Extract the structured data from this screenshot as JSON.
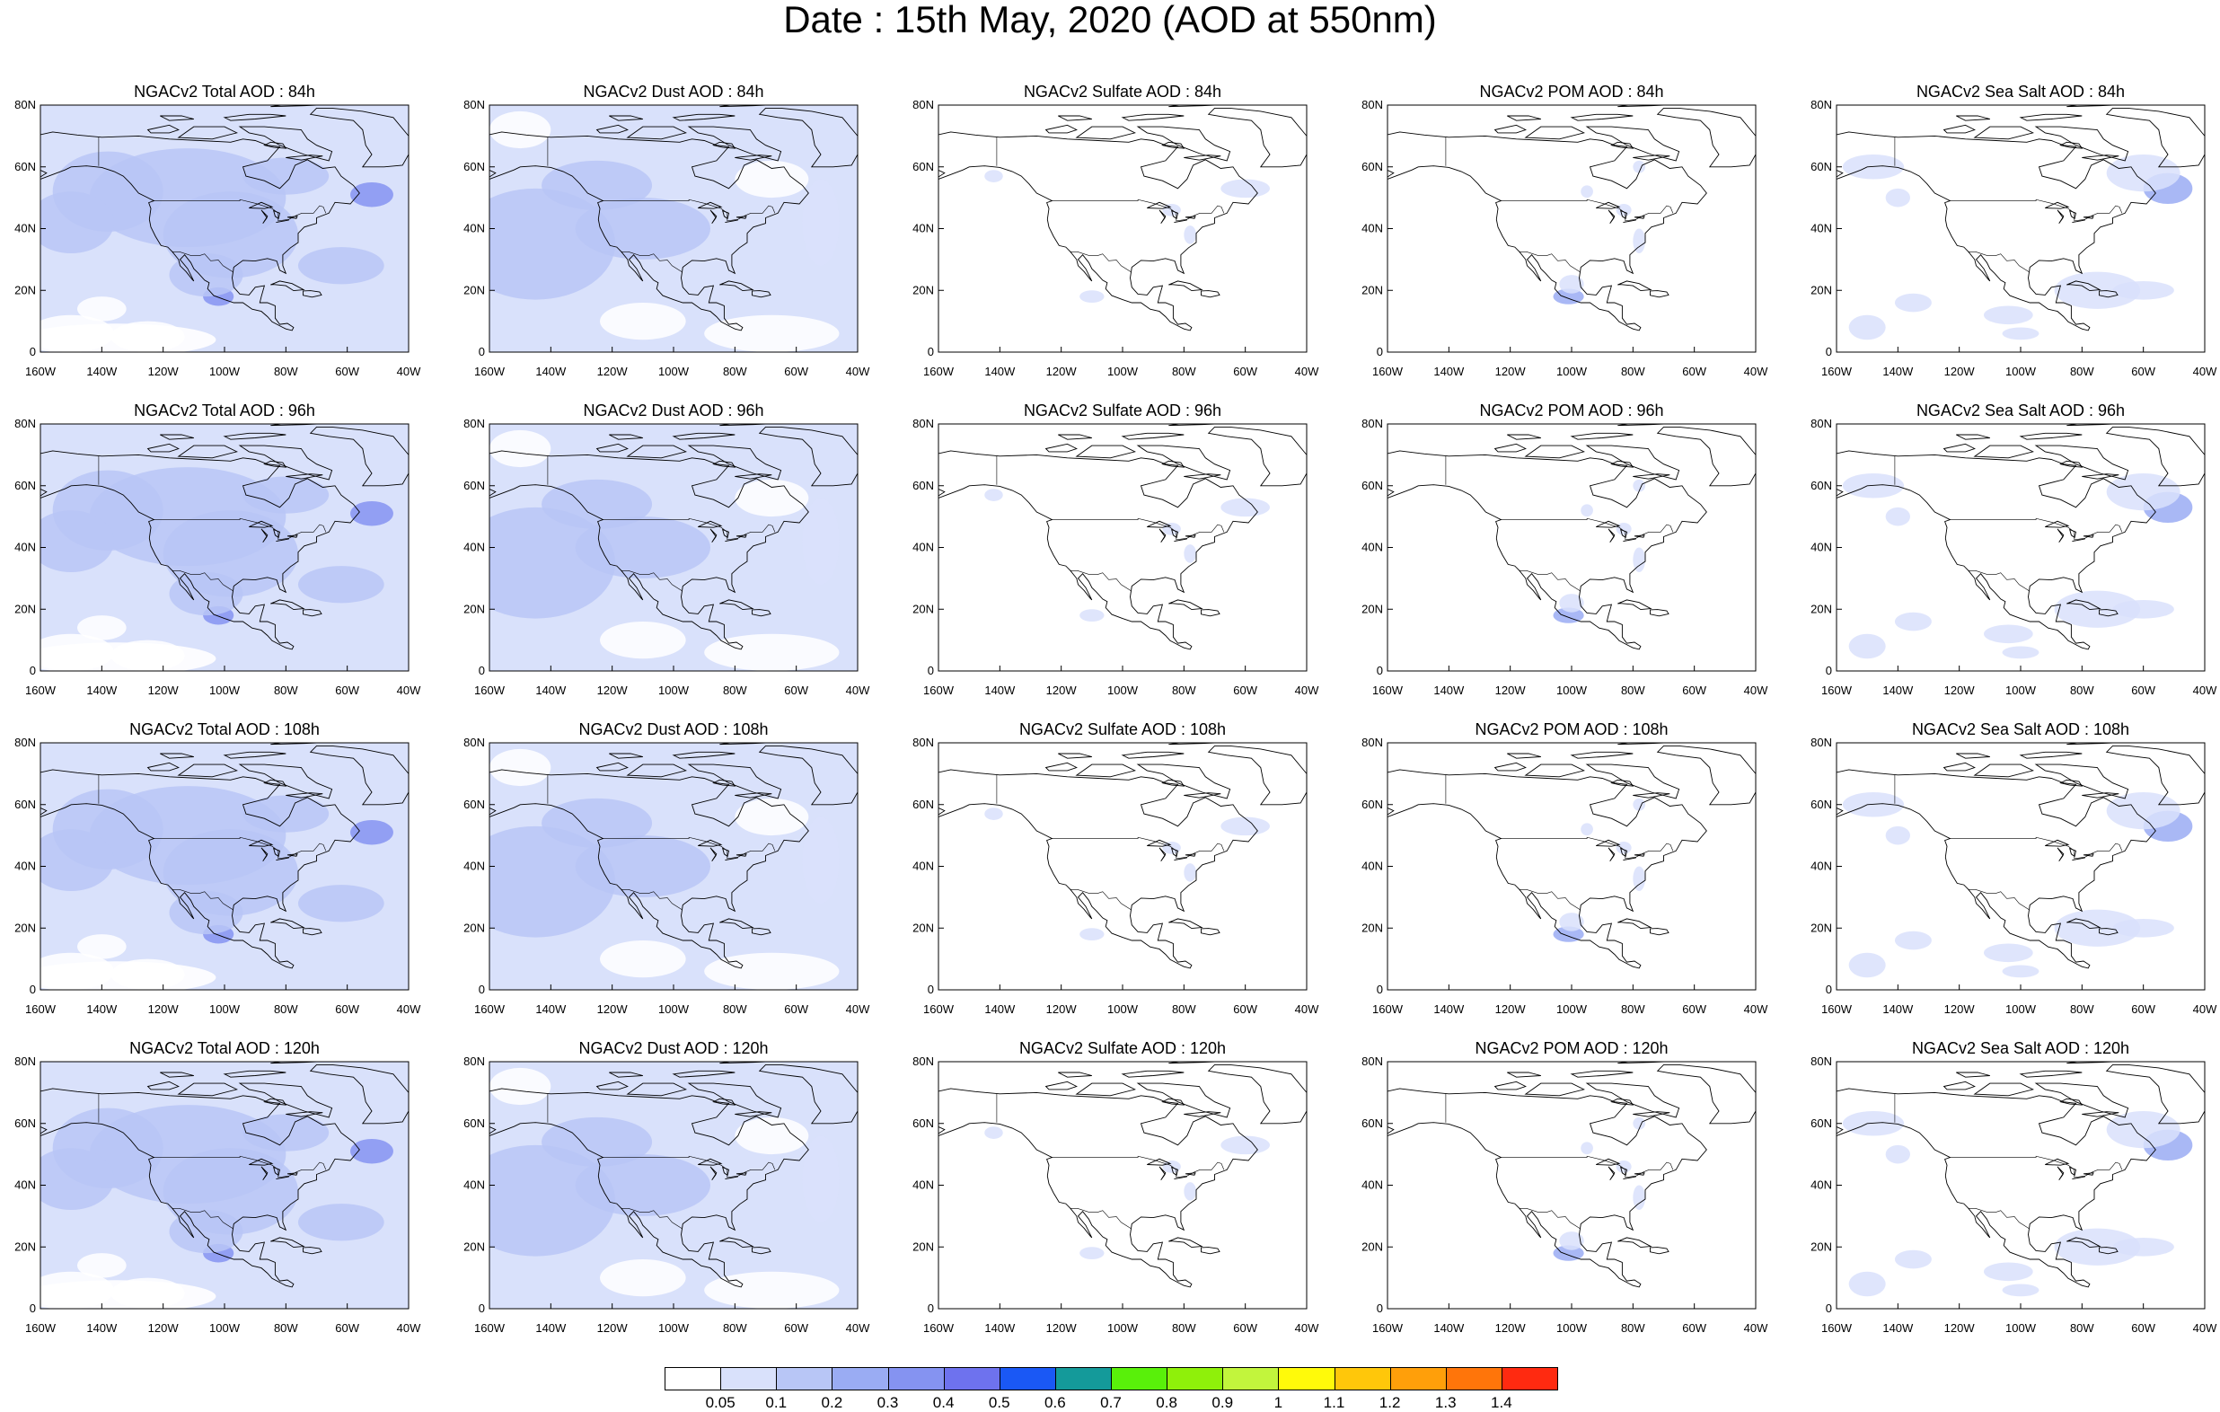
{
  "title": "Date : 15th May, 2020 (AOD at 550nm)",
  "colors": {
    "land_outline": "#000000",
    "levels": [
      "#ffffff",
      "#d9e1fb",
      "#b8c6f6",
      "#9aacf3",
      "#8593f1",
      "#6e72ee",
      "#1a58f5",
      "#149a9a",
      "#59f00a",
      "#8ff00a",
      "#c2f53c",
      "#fffa0a",
      "#ffc70a",
      "#ff9f0a",
      "#ff750a",
      "#ff2a10"
    ]
  },
  "axes": {
    "lon_ticks": [
      "160W",
      "140W",
      "120W",
      "100W",
      "80W",
      "60W",
      "40W"
    ],
    "lat_ticks": [
      "0",
      "20N",
      "40N",
      "60N",
      "80N"
    ],
    "lon_range": [
      -160,
      -40
    ],
    "lat_range": [
      0,
      80
    ]
  },
  "panels": [
    {
      "title": "NGACv2 Total AOD : 84h",
      "species": "total",
      "hour": 84
    },
    {
      "title": "NGACv2 Dust AOD : 84h",
      "species": "dust",
      "hour": 84
    },
    {
      "title": "NGACv2 Sulfate AOD : 84h",
      "species": "sulfate",
      "hour": 84
    },
    {
      "title": "NGACv2 POM AOD : 84h",
      "species": "pom",
      "hour": 84
    },
    {
      "title": "NGACv2 Sea Salt AOD : 84h",
      "species": "seasalt",
      "hour": 84
    },
    {
      "title": "NGACv2 Total AOD : 96h",
      "species": "total",
      "hour": 96
    },
    {
      "title": "NGACv2 Dust AOD : 96h",
      "species": "dust",
      "hour": 96
    },
    {
      "title": "NGACv2 Sulfate AOD : 96h",
      "species": "sulfate",
      "hour": 96
    },
    {
      "title": "NGACv2 POM AOD : 96h",
      "species": "pom",
      "hour": 96
    },
    {
      "title": "NGACv2 Sea Salt AOD : 96h",
      "species": "seasalt",
      "hour": 96
    },
    {
      "title": "NGACv2 Total AOD : 108h",
      "species": "total",
      "hour": 108
    },
    {
      "title": "NGACv2 Dust AOD : 108h",
      "species": "dust",
      "hour": 108
    },
    {
      "title": "NGACv2 Sulfate AOD : 108h",
      "species": "sulfate",
      "hour": 108
    },
    {
      "title": "NGACv2 POM AOD : 108h",
      "species": "pom",
      "hour": 108
    },
    {
      "title": "NGACv2 Sea Salt AOD : 108h",
      "species": "seasalt",
      "hour": 108
    },
    {
      "title": "NGACv2 Total AOD : 120h",
      "species": "total",
      "hour": 120
    },
    {
      "title": "NGACv2 Dust AOD : 120h",
      "species": "dust",
      "hour": 120
    },
    {
      "title": "NGACv2 Sulfate AOD : 120h",
      "species": "sulfate",
      "hour": 120
    },
    {
      "title": "NGACv2 POM AOD : 120h",
      "species": "pom",
      "hour": 120
    },
    {
      "title": "NGACv2 Sea Salt  AOD : 120h",
      "species": "seasalt",
      "hour": 120
    }
  ],
  "colorbar": {
    "labels": [
      "0.05",
      "0.1",
      "0.2",
      "0.3",
      "0.4",
      "0.5",
      "0.6",
      "0.7",
      "0.8",
      "0.9",
      "1",
      "1.1",
      "1.2",
      "1.3",
      "1.4"
    ]
  }
}
